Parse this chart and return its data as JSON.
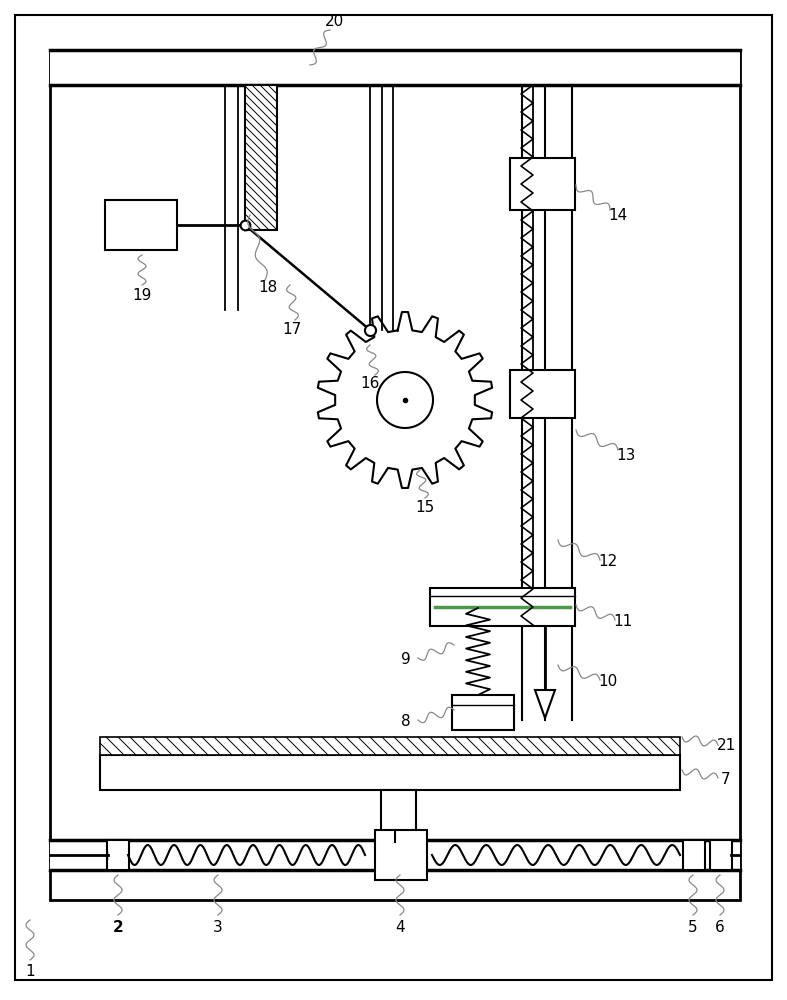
{
  "bg_color": "#ffffff",
  "line_color": "#000000",
  "fig_width": 7.87,
  "fig_height": 10.0,
  "dpi": 100,
  "anno_color": "#888888",
  "green_color": "#4a9a4a"
}
